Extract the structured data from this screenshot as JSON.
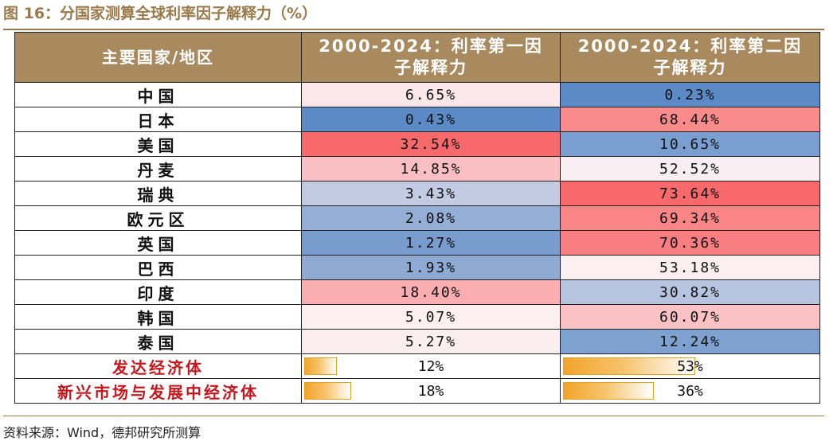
{
  "title": "图 16：分国家测算全球利率因子解释力（%）",
  "headers": [
    "主要国家/地区",
    "2000-2024：利率第一因子解释力",
    "2000-2024：利率第二因子解释力"
  ],
  "header_lines": [
    [
      "主要国家/地区"
    ],
    [
      "2000-2024：利率第一因",
      "子解释力"
    ],
    [
      "2000-2024：利率第二因",
      "子解释力"
    ]
  ],
  "rows": [
    {
      "name": "中国",
      "f1": "6.65%",
      "f2": "0.23%"
    },
    {
      "name": "日本",
      "f1": "0.43%",
      "f2": "68.44%"
    },
    {
      "name": "美国",
      "f1": "32.54%",
      "f2": "10.65%"
    },
    {
      "name": "丹麦",
      "f1": "14.85%",
      "f2": "52.52%"
    },
    {
      "name": "瑞典",
      "f1": "3.43%",
      "f2": "73.64%"
    },
    {
      "name": "欧元区",
      "f1": "2.08%",
      "f2": "69.34%"
    },
    {
      "name": "英国",
      "f1": "1.27%",
      "f2": "70.36%"
    },
    {
      "name": "巴西",
      "f1": "1.93%",
      "f2": "53.18%"
    },
    {
      "name": "印度",
      "f1": "18.40%",
      "f2": "30.82%"
    },
    {
      "name": "韩国",
      "f1": "5.07%",
      "f2": "60.07%"
    },
    {
      "name": "泰国",
      "f1": "5.27%",
      "f2": "12.24%"
    }
  ],
  "group_rows": [
    {
      "name": "发达经济体",
      "f1": "12%",
      "f2": "53%"
    },
    {
      "name": "新兴市场与发展中经济体",
      "f1": "18%",
      "f2": "36%"
    }
  ],
  "colors": {
    "header_bg": "#a98a5f",
    "title": "#9a7a4b",
    "red_text": "#c8161d",
    "heat_low": "#5b8ac6",
    "heat_mid": "#fbeff2",
    "heat_high": "#f8696b",
    "bar": "#f2a42c"
  },
  "source": "资料来源：Wind，德邦研究所测算"
}
